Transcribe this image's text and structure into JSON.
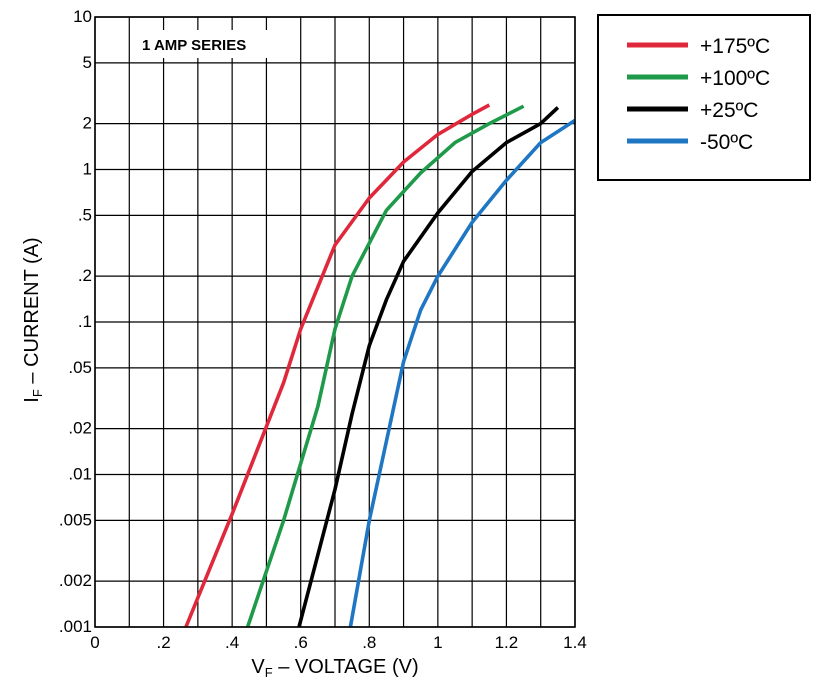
{
  "chart_data": {
    "type": "line",
    "title": "1 AMP SERIES",
    "xlabel": {
      "main": "V",
      "sub": "F",
      "rest": " – VOLTAGE (V)"
    },
    "ylabel": {
      "main": "I",
      "sub": "F",
      "rest": " – CURRENT  (A)"
    },
    "xlim": [
      0,
      1.4
    ],
    "ylim": [
      0.001,
      10
    ],
    "yscale": "log",
    "grid": true,
    "legend_position": "outside-top-right",
    "x_ticks": [
      {
        "value": 0,
        "label": "0"
      },
      {
        "value": 0.2,
        "label": ".2"
      },
      {
        "value": 0.4,
        "label": ".4"
      },
      {
        "value": 0.6,
        "label": ".6"
      },
      {
        "value": 0.8,
        "label": ".8"
      },
      {
        "value": 1.0,
        "label": "1"
      },
      {
        "value": 1.2,
        "label": "1.2"
      },
      {
        "value": 1.4,
        "label": "1.4"
      }
    ],
    "x_grid": [
      0,
      0.1,
      0.2,
      0.3,
      0.4,
      0.5,
      0.6,
      0.7,
      0.8,
      0.9,
      1.0,
      1.1,
      1.2,
      1.3,
      1.4
    ],
    "y_ticks": [
      {
        "value": 10,
        "label": "10"
      },
      {
        "value": 5,
        "label": "5"
      },
      {
        "value": 2,
        "label": "2"
      },
      {
        "value": 1,
        "label": "1"
      },
      {
        "value": 0.5,
        "label": ".5"
      },
      {
        "value": 0.2,
        "label": ".2"
      },
      {
        "value": 0.1,
        "label": ".1"
      },
      {
        "value": 0.05,
        "label": ".05"
      },
      {
        "value": 0.02,
        "label": ".02"
      },
      {
        "value": 0.01,
        "label": ".01"
      },
      {
        "value": 0.005,
        "label": ".005"
      },
      {
        "value": 0.002,
        "label": ".002"
      },
      {
        "value": 0.001,
        "label": ".001"
      }
    ],
    "series": [
      {
        "name": "+175ºC",
        "color": "#e0283c",
        "points": [
          [
            0.265,
            0.001
          ],
          [
            0.4,
            0.0055
          ],
          [
            0.55,
            0.04
          ],
          [
            0.6,
            0.09
          ],
          [
            0.7,
            0.32
          ],
          [
            0.8,
            0.65
          ],
          [
            0.9,
            1.12
          ],
          [
            1.0,
            1.7
          ],
          [
            1.1,
            2.3
          ],
          [
            1.15,
            2.65
          ]
        ]
      },
      {
        "name": "+100ºC",
        "color": "#1f9a4a",
        "points": [
          [
            0.445,
            0.001
          ],
          [
            0.55,
            0.005
          ],
          [
            0.65,
            0.028
          ],
          [
            0.7,
            0.09
          ],
          [
            0.75,
            0.2
          ],
          [
            0.85,
            0.54
          ],
          [
            0.95,
            0.95
          ],
          [
            1.05,
            1.5
          ],
          [
            1.15,
            2.0
          ],
          [
            1.25,
            2.6
          ]
        ]
      },
      {
        "name": "+25ºC",
        "color": "#000000",
        "points": [
          [
            0.595,
            0.001
          ],
          [
            0.7,
            0.008
          ],
          [
            0.75,
            0.025
          ],
          [
            0.8,
            0.07
          ],
          [
            0.85,
            0.14
          ],
          [
            0.9,
            0.25
          ],
          [
            1.0,
            0.52
          ],
          [
            1.1,
            0.97
          ],
          [
            1.2,
            1.5
          ],
          [
            1.3,
            2.0
          ],
          [
            1.35,
            2.55
          ]
        ]
      },
      {
        "name": "-50ºC",
        "color": "#1f77c4",
        "points": [
          [
            0.745,
            0.001
          ],
          [
            0.8,
            0.005
          ],
          [
            0.9,
            0.055
          ],
          [
            0.95,
            0.12
          ],
          [
            1.0,
            0.2
          ],
          [
            1.1,
            0.45
          ],
          [
            1.2,
            0.85
          ],
          [
            1.3,
            1.5
          ],
          [
            1.4,
            2.1
          ]
        ]
      }
    ]
  }
}
